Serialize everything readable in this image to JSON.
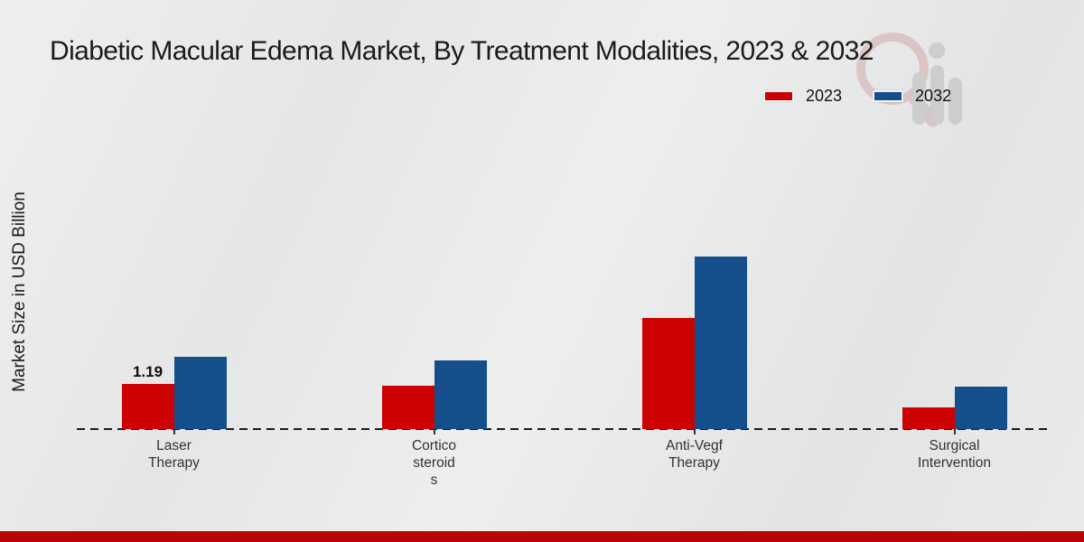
{
  "page": {
    "title": "Diabetic Macular Edema Market, By Treatment Modalities, 2023 & 2032",
    "ylabel": "Market Size in USD Billion"
  },
  "colors": {
    "series_2023": "#cc0202",
    "series_2032": "#144f8c",
    "footer_bar": "#bc0303",
    "axis_line": "#1a1a1a",
    "category_label": "#333333"
  },
  "legend": {
    "items": [
      {
        "label": "2023",
        "color": "#cc0202"
      },
      {
        "label": "2032",
        "color": "#144f8c"
      }
    ]
  },
  "watermark": {
    "name": "market-research-logo"
  },
  "chart_data": {
    "type": "bar",
    "title": "Diabetic Macular Edema Market, By Treatment Modalities, 2023 & 2032",
    "xlabel": "",
    "ylabel": "Market Size in USD Billion",
    "categories": [
      "Laser Therapy",
      "Corticosteroids",
      "Anti-Vegf Therapy",
      "Surgical Intervention"
    ],
    "category_display_lines": [
      [
        "Laser",
        "Therapy"
      ],
      [
        "Cortico",
        "steroid",
        "s"
      ],
      [
        "Anti-Vegf",
        "Therapy"
      ],
      [
        "Surgical",
        "Intervention"
      ]
    ],
    "series": [
      {
        "name": "2023",
        "color": "#cc0202",
        "values": [
          1.19,
          1.14,
          2.93,
          0.57
        ]
      },
      {
        "name": "2032",
        "color": "#144f8c",
        "values": [
          1.9,
          1.81,
          4.55,
          1.12
        ]
      }
    ],
    "annotations": [
      {
        "series": "2023",
        "category_index": 0,
        "text": "1.19"
      }
    ],
    "ylim": [
      0,
      5
    ],
    "grid": false,
    "legend_position": "top-right",
    "baseline_style": "dashed"
  }
}
